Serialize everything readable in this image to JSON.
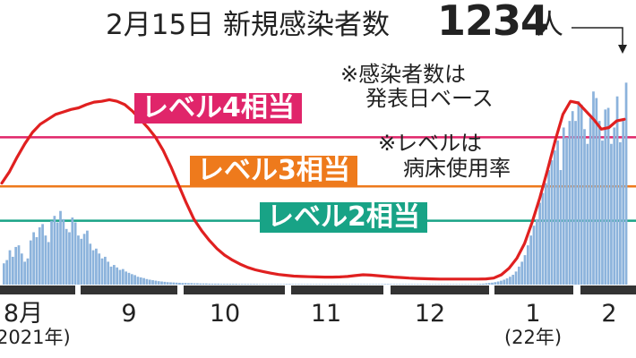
{
  "header": {
    "title": "2月15日 新規感染者数",
    "count": "1234",
    "unit": "人"
  },
  "notes": {
    "basis_line1": "※感染者数は",
    "basis_line2": "発表日ベース",
    "level_line1": "※レベルは",
    "level_line2": "病床使用率"
  },
  "levels": [
    {
      "label": "レベル4相当",
      "color": "#e0256a"
    },
    {
      "label": "レベル3相当",
      "color": "#ee7a1c"
    },
    {
      "label": "レベル2相当",
      "color": "#18a386"
    }
  ],
  "colors": {
    "bars": "#8cb3dc",
    "line": "#e02020",
    "axis": "#333333"
  },
  "chart_data": {
    "type": "bar",
    "x_tick_labels": [
      "8月",
      "9",
      "10",
      "11",
      "12",
      "1",
      "2"
    ],
    "year_labels": [
      "2021年",
      "(22年)"
    ],
    "series": [
      {
        "kind": "bar",
        "note": "daily new cases (approximate, one bar per day from 2021-08-01)",
        "values": [
          130,
          150,
          210,
          170,
          230,
          240,
          190,
          140,
          160,
          270,
          320,
          290,
          350,
          370,
          300,
          260,
          390,
          420,
          380,
          450,
          400,
          340,
          320,
          410,
          380,
          300,
          280,
          310,
          330,
          250,
          210,
          220,
          190,
          160,
          170,
          140,
          110,
          120,
          105,
          90,
          95,
          80,
          72,
          64,
          58,
          48,
          44,
          40,
          34,
          30,
          27,
          24,
          21,
          19,
          17,
          15,
          14,
          13,
          12,
          11,
          10,
          10,
          9,
          9,
          8,
          8,
          7,
          7,
          7,
          6,
          6,
          6,
          6,
          5,
          5,
          5,
          5,
          5,
          5,
          4,
          4,
          4,
          4,
          4,
          4,
          4,
          3,
          3,
          3,
          3,
          3,
          3,
          3,
          3,
          3,
          3,
          3,
          3,
          3,
          3,
          3,
          3,
          3,
          3,
          3,
          3,
          3,
          3,
          3,
          3,
          3,
          3,
          3,
          3,
          3,
          3,
          3,
          3,
          3,
          3,
          3,
          3,
          3,
          3,
          3,
          3,
          3,
          3,
          3,
          3,
          3,
          3,
          3,
          3,
          3,
          3,
          3,
          3,
          3,
          3,
          3,
          3,
          3,
          3,
          3,
          3,
          3,
          3,
          3,
          3,
          3,
          3,
          3,
          3,
          3,
          3,
          3,
          3,
          3,
          4,
          5,
          6,
          8,
          10,
          12,
          15,
          19,
          24,
          30,
          38,
          48,
          60,
          80,
          110,
          140,
          180,
          240,
          300,
          360,
          400,
          500,
          560,
          620,
          700,
          760,
          820,
          880,
          700,
          960,
          900,
          1000,
          1060,
          1000,
          1120,
          1100,
          950,
          860,
          1020,
          1180,
          1140,
          1000,
          880,
          1070,
          1080,
          860,
          960,
          1150,
          870,
          1000,
          1234
        ]
      },
      {
        "kind": "line",
        "note": "hospital bed occupancy level (unlabeled scale)",
        "values": [
          620,
          690,
          780,
          860,
          930,
          980,
          1010,
          1040,
          1055,
          1070,
          1080,
          1100,
          1115,
          1120,
          1130,
          1120,
          1100,
          1060,
          1010,
          960,
          900,
          820,
          720,
          610,
          500,
          400,
          330,
          270,
          220,
          180,
          150,
          125,
          105,
          90,
          80,
          70,
          62,
          57,
          52,
          50,
          48,
          47,
          46,
          46,
          47,
          50,
          55,
          60,
          58,
          54,
          50,
          46,
          43,
          40,
          38,
          36,
          35,
          34,
          34,
          34,
          34,
          34,
          34,
          35,
          40,
          60,
          100,
          160,
          250,
          380,
          530,
          700,
          880,
          1040,
          1120,
          1110,
          1060,
          1010,
          950,
          960,
          1000,
          1010
        ]
      }
    ],
    "reference_lines": [
      {
        "label": "レベル4相当",
        "value": 900
      },
      {
        "label": "レベル3相当",
        "value": 600
      },
      {
        "label": "レベル2相当",
        "value": 390
      }
    ],
    "ylim": [
      0,
      1400
    ]
  }
}
